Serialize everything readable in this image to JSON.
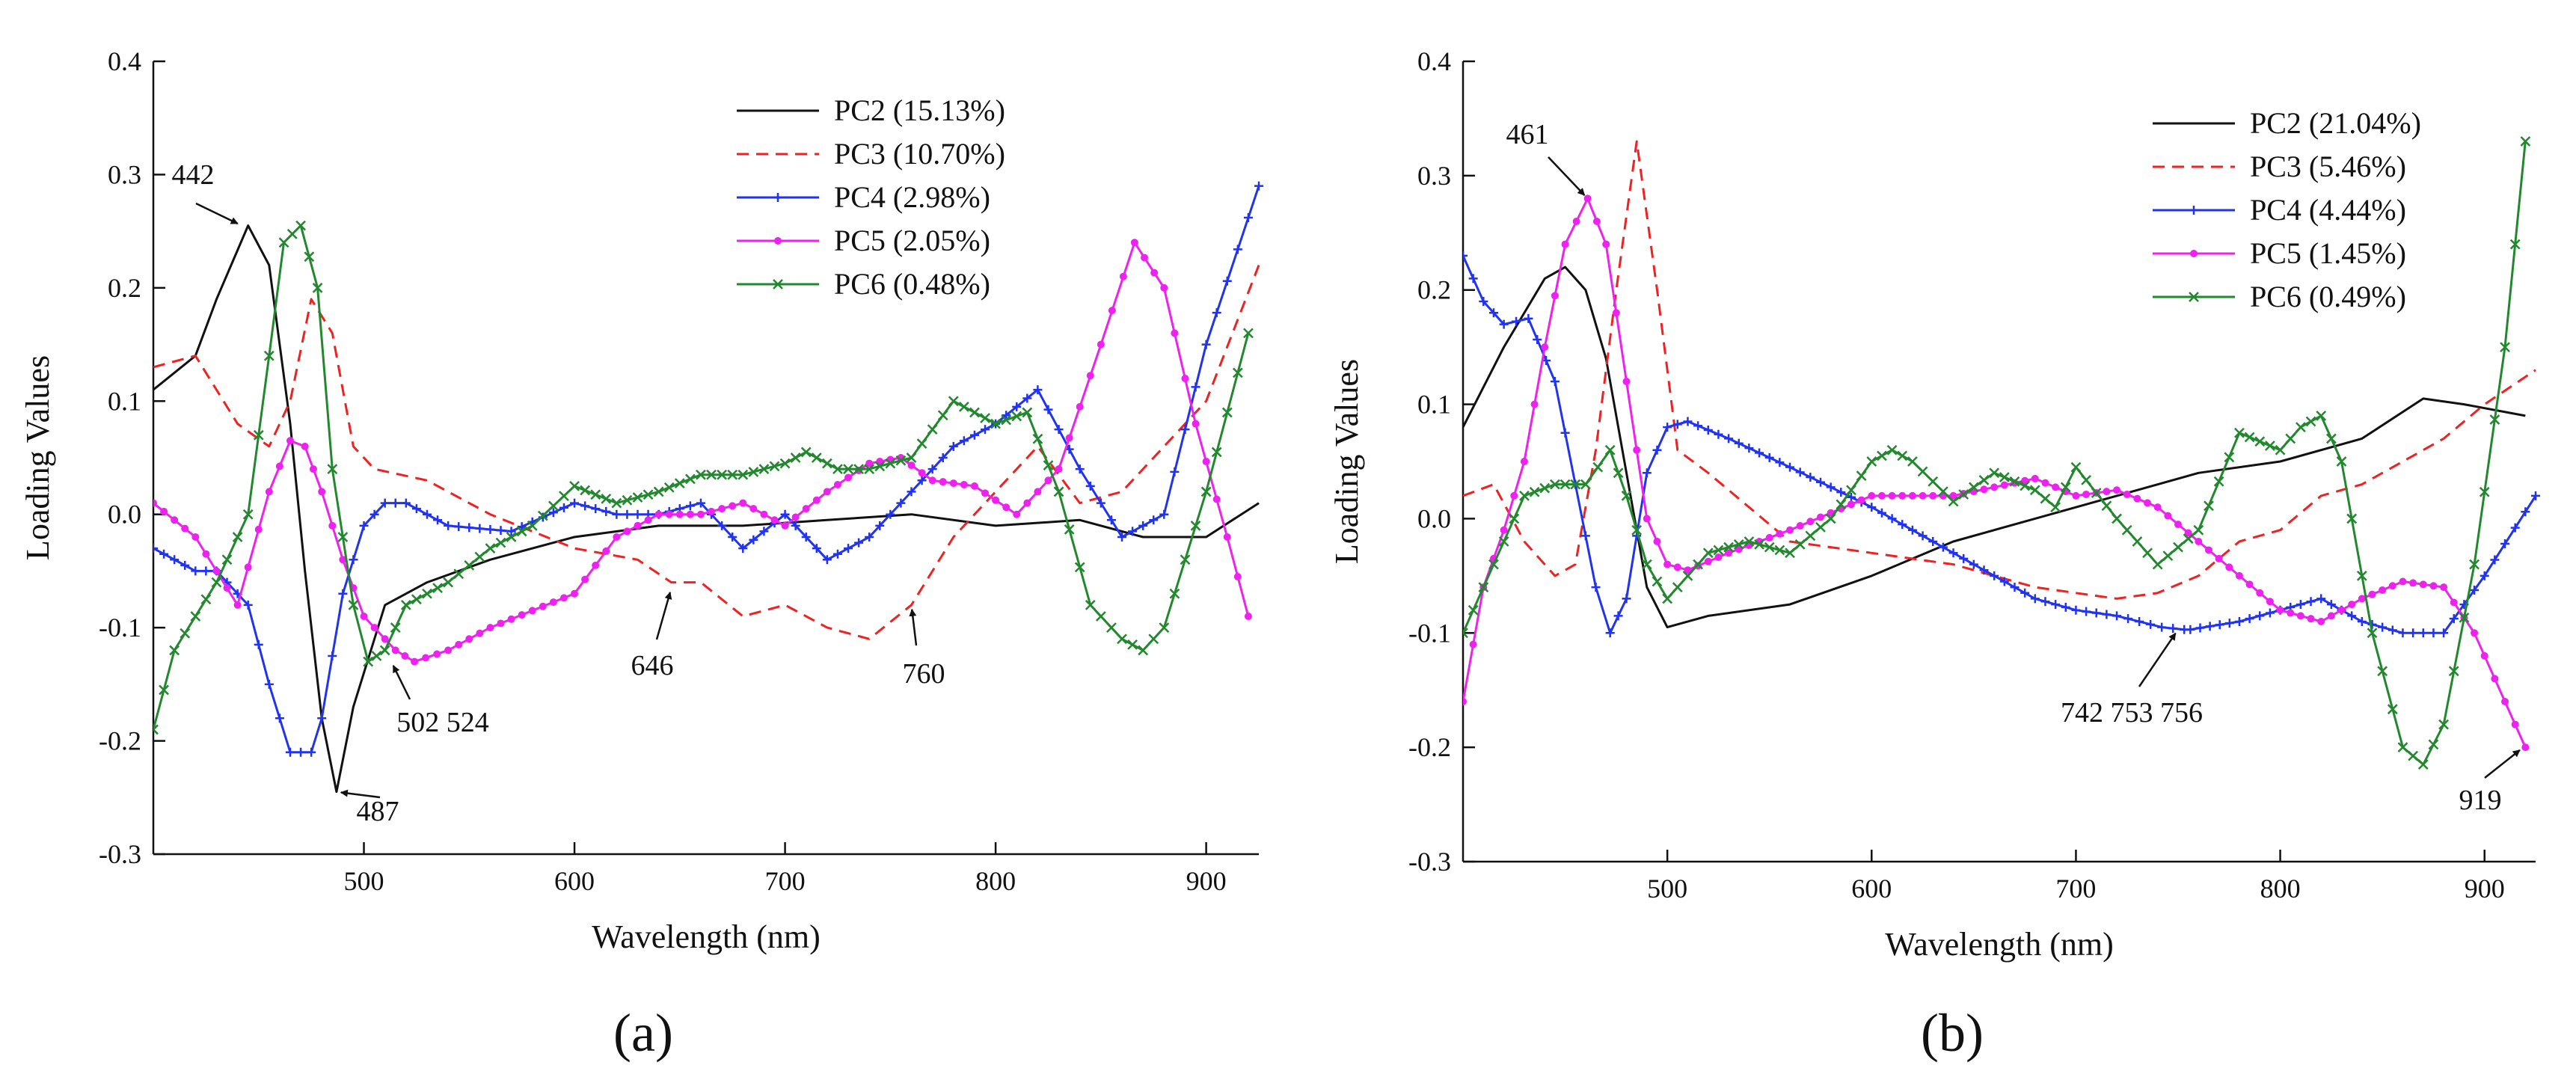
{
  "figure": {
    "panel_labels": [
      "(a)",
      "(b)"
    ]
  },
  "chart_data": [
    {
      "type": "line",
      "panel": "(a)",
      "title": "",
      "xlabel": "Wavelength (nm)",
      "ylabel": "Loading Values",
      "xlim": [
        400,
        925
      ],
      "ylim": [
        -0.3,
        0.4
      ],
      "xticks": [
        500,
        600,
        700,
        800,
        900
      ],
      "yticks": [
        -0.3,
        -0.2,
        -0.1,
        0.0,
        0.1,
        0.2,
        0.3,
        0.4
      ],
      "ytick_labels": [
        "-0.3",
        "-0.2",
        "-0.1",
        "0.0",
        "0.1",
        "0.2",
        "0.3",
        "0.4"
      ],
      "legend_position": "top-right",
      "series": [
        {
          "name": "PC2",
          "legend_label": "PC2  (15.13%)",
          "color": "#111111",
          "dash": "solid",
          "marker": "none",
          "x": [
            400,
            420,
            430,
            445,
            455,
            465,
            472,
            480,
            487,
            495,
            510,
            530,
            560,
            600,
            640,
            680,
            720,
            760,
            800,
            840,
            870,
            900,
            925
          ],
          "y": [
            0.11,
            0.14,
            0.19,
            0.255,
            0.22,
            0.08,
            -0.05,
            -0.18,
            -0.245,
            -0.17,
            -0.08,
            -0.06,
            -0.04,
            -0.02,
            -0.01,
            -0.01,
            -0.005,
            0.0,
            -0.01,
            -0.005,
            -0.02,
            -0.02,
            0.01
          ]
        },
        {
          "name": "PC3",
          "legend_label": "PC3  (10.70%)",
          "color": "#ee2222",
          "dash": "dashed",
          "marker": "none",
          "x": [
            400,
            420,
            440,
            455,
            465,
            475,
            485,
            495,
            505,
            530,
            560,
            600,
            630,
            646,
            660,
            680,
            700,
            720,
            740,
            760,
            780,
            800,
            820,
            840,
            860,
            880,
            900,
            925
          ],
          "y": [
            0.13,
            0.14,
            0.08,
            0.06,
            0.1,
            0.19,
            0.16,
            0.06,
            0.04,
            0.03,
            0.0,
            -0.03,
            -0.04,
            -0.06,
            -0.06,
            -0.09,
            -0.08,
            -0.1,
            -0.11,
            -0.08,
            -0.02,
            0.02,
            0.06,
            0.01,
            0.02,
            0.06,
            0.1,
            0.22
          ]
        },
        {
          "name": "PC4",
          "legend_label": "PC4  (2.98%)",
          "color": "#2233ee",
          "dash": "solid",
          "marker": "plus",
          "x": [
            400,
            420,
            430,
            445,
            455,
            465,
            475,
            480,
            490,
            500,
            510,
            520,
            540,
            570,
            600,
            620,
            640,
            660,
            680,
            700,
            720,
            740,
            760,
            780,
            800,
            820,
            840,
            860,
            880,
            900,
            925
          ],
          "y": [
            -0.03,
            -0.05,
            -0.05,
            -0.08,
            -0.15,
            -0.21,
            -0.21,
            -0.18,
            -0.07,
            -0.01,
            0.01,
            0.01,
            -0.01,
            -0.015,
            0.01,
            0.0,
            0.0,
            0.01,
            -0.03,
            0.0,
            -0.04,
            -0.02,
            0.02,
            0.06,
            0.08,
            0.11,
            0.04,
            -0.02,
            0.0,
            0.15,
            0.29
          ]
        },
        {
          "name": "PC5",
          "legend_label": "PC5  (2.05%)",
          "color": "#ee22ee",
          "dash": "solid",
          "marker": "dot",
          "x": [
            400,
            420,
            440,
            455,
            465,
            472,
            480,
            490,
            500,
            515,
            524,
            540,
            560,
            580,
            600,
            620,
            640,
            660,
            680,
            700,
            720,
            740,
            755,
            770,
            790,
            810,
            830,
            850,
            866,
            880,
            895,
            910,
            920
          ],
          "y": [
            0.01,
            -0.02,
            -0.08,
            0.02,
            0.065,
            0.06,
            0.02,
            -0.04,
            -0.09,
            -0.12,
            -0.13,
            -0.12,
            -0.1,
            -0.085,
            -0.07,
            -0.02,
            0.0,
            0.0,
            0.01,
            -0.01,
            0.02,
            0.045,
            0.05,
            0.03,
            0.025,
            0.0,
            0.04,
            0.15,
            0.24,
            0.2,
            0.08,
            -0.02,
            -0.09
          ]
        },
        {
          "name": "PC6",
          "legend_label": "PC6  (0.48%)",
          "color": "#22882e",
          "dash": "solid",
          "marker": "cross",
          "x": [
            400,
            410,
            430,
            445,
            455,
            462,
            470,
            478,
            485,
            495,
            502,
            510,
            520,
            540,
            560,
            580,
            600,
            620,
            640,
            660,
            680,
            700,
            710,
            725,
            740,
            760,
            780,
            800,
            815,
            830,
            845,
            860,
            870,
            880,
            890,
            900,
            910,
            920
          ],
          "y": [
            -0.19,
            -0.12,
            -0.06,
            0.0,
            0.14,
            0.24,
            0.255,
            0.2,
            0.04,
            -0.08,
            -0.13,
            -0.12,
            -0.08,
            -0.06,
            -0.03,
            -0.01,
            0.025,
            0.01,
            0.02,
            0.035,
            0.035,
            0.045,
            0.055,
            0.04,
            0.04,
            0.05,
            0.1,
            0.08,
            0.09,
            0.02,
            -0.08,
            -0.11,
            -0.12,
            -0.1,
            -0.04,
            0.02,
            0.09,
            0.16
          ]
        }
      ],
      "annotations": [
        {
          "label": "442",
          "x": 442,
          "y": 0.255
        },
        {
          "label": "487",
          "x": 487,
          "y": -0.245
        },
        {
          "label": "502 524",
          "x": 513,
          "y": -0.13
        },
        {
          "label": "646",
          "x": 646,
          "y": -0.065
        },
        {
          "label": "760",
          "x": 760,
          "y": -0.08
        }
      ]
    },
    {
      "type": "line",
      "panel": "(b)",
      "title": "",
      "xlabel": "Wavelength (nm)",
      "ylabel": "Loading Values",
      "xlim": [
        400,
        925
      ],
      "ylim": [
        -0.3,
        0.4
      ],
      "xticks": [
        500,
        600,
        700,
        800,
        900
      ],
      "yticks": [
        -0.3,
        -0.2,
        -0.1,
        0.0,
        0.1,
        0.2,
        0.3,
        0.4
      ],
      "ytick_labels": [
        "-0.3",
        "-0.2",
        "-0.1",
        "0.0",
        "0.1",
        "0.2",
        "0.3",
        "0.4"
      ],
      "legend_position": "top-right",
      "series": [
        {
          "name": "PC2",
          "legend_label": "PC2  (21.04%)",
          "color": "#111111",
          "dash": "solid",
          "marker": "none",
          "x": [
            400,
            420,
            440,
            450,
            460,
            470,
            480,
            490,
            500,
            520,
            560,
            600,
            640,
            680,
            720,
            760,
            800,
            840,
            870,
            890,
            920
          ],
          "y": [
            0.08,
            0.15,
            0.21,
            0.22,
            0.2,
            0.14,
            0.04,
            -0.06,
            -0.095,
            -0.085,
            -0.075,
            -0.05,
            -0.02,
            0.0,
            0.02,
            0.04,
            0.05,
            0.07,
            0.105,
            0.1,
            0.09
          ]
        },
        {
          "name": "PC3",
          "legend_label": "PC3  (5.46%)",
          "color": "#ee2222",
          "dash": "dashed",
          "marker": "none",
          "x": [
            400,
            415,
            430,
            445,
            455,
            465,
            475,
            485,
            495,
            505,
            520,
            560,
            600,
            640,
            660,
            680,
            700,
            720,
            740,
            760,
            780,
            800,
            820,
            840,
            860,
            880,
            900,
            925
          ],
          "y": [
            0.02,
            0.03,
            -0.02,
            -0.05,
            -0.04,
            0.06,
            0.2,
            0.33,
            0.2,
            0.06,
            0.04,
            -0.02,
            -0.03,
            -0.04,
            -0.05,
            -0.06,
            -0.065,
            -0.07,
            -0.065,
            -0.05,
            -0.02,
            -0.01,
            0.02,
            0.03,
            0.05,
            0.07,
            0.1,
            0.13
          ]
        },
        {
          "name": "PC4",
          "legend_label": "PC4  (4.44%)",
          "color": "#2233ee",
          "dash": "solid",
          "marker": "plus",
          "x": [
            400,
            410,
            420,
            432,
            445,
            455,
            465,
            472,
            480,
            490,
            500,
            510,
            530,
            560,
            600,
            640,
            680,
            700,
            720,
            742,
            753,
            756,
            780,
            800,
            820,
            840,
            860,
            880,
            900,
            925
          ],
          "y": [
            0.23,
            0.19,
            0.17,
            0.175,
            0.12,
            0.03,
            -0.06,
            -0.1,
            -0.07,
            0.04,
            0.08,
            0.085,
            0.07,
            0.045,
            0.01,
            -0.03,
            -0.07,
            -0.08,
            -0.085,
            -0.095,
            -0.097,
            -0.097,
            -0.09,
            -0.08,
            -0.07,
            -0.09,
            -0.1,
            -0.1,
            -0.05,
            0.02
          ]
        },
        {
          "name": "PC5",
          "legend_label": "PC5  (1.45%)",
          "color": "#ee22ee",
          "dash": "solid",
          "marker": "dot",
          "x": [
            400,
            410,
            420,
            430,
            440,
            450,
            461,
            470,
            480,
            490,
            500,
            510,
            530,
            560,
            600,
            640,
            680,
            700,
            720,
            740,
            760,
            780,
            800,
            820,
            840,
            860,
            880,
            895,
            910,
            920
          ],
          "y": [
            -0.16,
            -0.06,
            -0.01,
            0.05,
            0.15,
            0.24,
            0.28,
            0.24,
            0.12,
            0.0,
            -0.04,
            -0.045,
            -0.03,
            -0.01,
            0.02,
            0.02,
            0.035,
            0.02,
            0.025,
            0.01,
            -0.02,
            -0.05,
            -0.08,
            -0.09,
            -0.07,
            -0.055,
            -0.06,
            -0.1,
            -0.16,
            -0.2
          ]
        },
        {
          "name": "PC6",
          "legend_label": "PC6  (0.49%)",
          "color": "#22882e",
          "dash": "solid",
          "marker": "cross",
          "x": [
            400,
            410,
            420,
            430,
            445,
            460,
            472,
            480,
            490,
            500,
            510,
            520,
            540,
            560,
            580,
            600,
            610,
            620,
            640,
            660,
            680,
            690,
            700,
            720,
            740,
            760,
            780,
            800,
            810,
            820,
            830,
            845,
            860,
            870,
            880,
            895,
            910,
            920
          ],
          "y": [
            -0.1,
            -0.06,
            -0.02,
            0.02,
            0.03,
            0.03,
            0.06,
            0.02,
            -0.04,
            -0.07,
            -0.05,
            -0.03,
            -0.02,
            -0.03,
            0.0,
            0.05,
            0.06,
            0.05,
            0.015,
            0.04,
            0.025,
            0.01,
            0.045,
            0.0,
            -0.04,
            -0.01,
            0.075,
            0.06,
            0.08,
            0.09,
            0.05,
            -0.1,
            -0.2,
            -0.215,
            -0.18,
            -0.04,
            0.15,
            0.33
          ]
        }
      ],
      "annotations": [
        {
          "label": "461",
          "x": 461,
          "y": 0.28
        },
        {
          "label": "742 753 756",
          "x": 750,
          "y": -0.097
        },
        {
          "label": "919",
          "x": 919,
          "y": -0.2
        }
      ]
    }
  ]
}
